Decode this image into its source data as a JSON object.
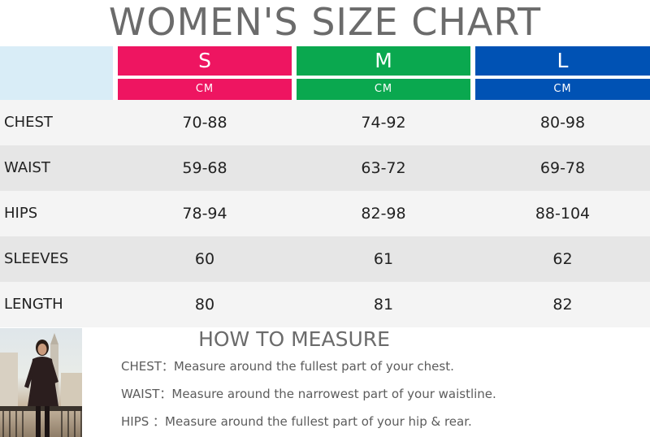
{
  "title": "WOMEN'S SIZE CHART",
  "colors": {
    "s": "#ee1561",
    "m": "#0aa84f",
    "l": "#0052b4",
    "corner": "#d9edf7"
  },
  "sizes": [
    {
      "size": "S",
      "unit": "CM"
    },
    {
      "size": "M",
      "unit": "CM"
    },
    {
      "size": "L",
      "unit": "CM"
    }
  ],
  "rows": [
    {
      "label": "CHEST",
      "s": "70-88",
      "m": "74-92",
      "l": "80-98"
    },
    {
      "label": "WAIST",
      "s": "59-68",
      "m": "63-72",
      "l": "69-78"
    },
    {
      "label": "HIPS",
      "s": "78-94",
      "m": "82-98",
      "l": "88-104"
    },
    {
      "label": "SLEEVES",
      "s": "60",
      "m": "61",
      "l": "62"
    },
    {
      "label": "LENGTH",
      "s": "80",
      "m": "81",
      "l": "82"
    }
  ],
  "how_to": {
    "title": "HOW TO MEASURE",
    "items": [
      {
        "key": "CHEST：",
        "text": "Measure around the fullest part of your chest."
      },
      {
        "key": "WAIST：",
        "text": "Measure around the narrowest part of your waistline."
      },
      {
        "key": "HIPS ：",
        "text": "Measure around the fullest part of your hip & rear."
      }
    ]
  }
}
